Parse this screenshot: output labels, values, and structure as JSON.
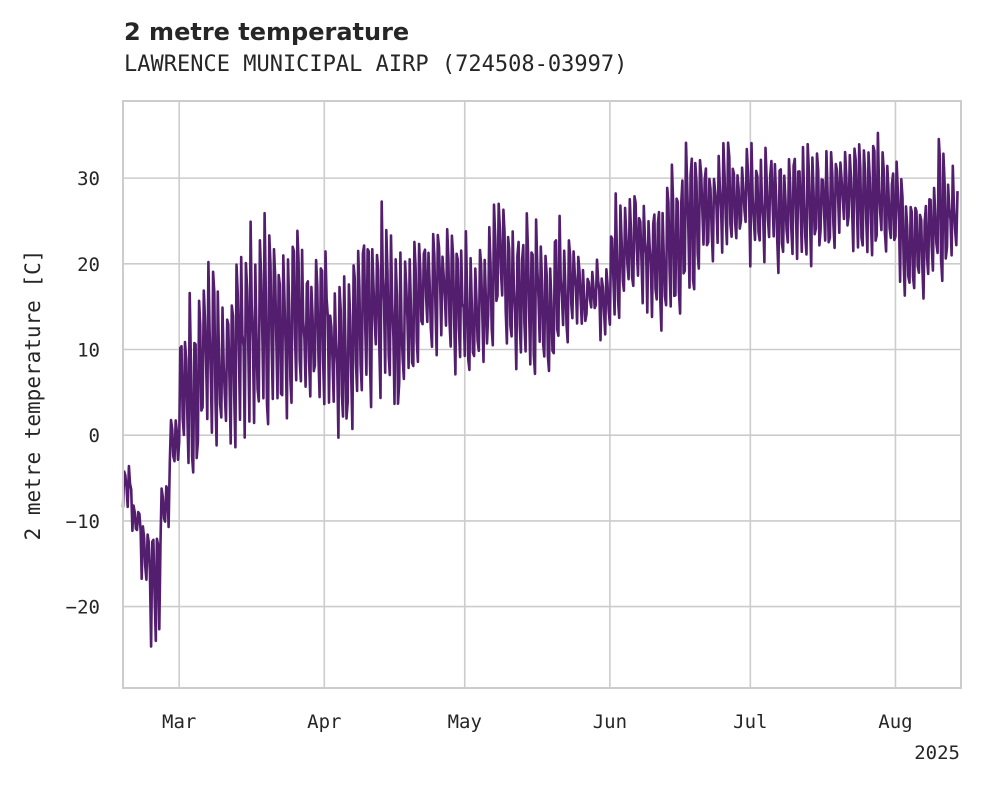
{
  "chart_data": {
    "type": "line",
    "title": "2 metre temperature",
    "subtitle": "LAWRENCE MUNICIPAL AIRP (724508-03997)",
    "ylabel": "2 metre temperature [C]",
    "xlabel": "",
    "x_tick_labels": [
      "Mar",
      "Apr",
      "May",
      "Jun",
      "Jul",
      "Aug"
    ],
    "x_tick_dates": [
      "2025-03-01",
      "2025-04-01",
      "2025-05-01",
      "2025-06-01",
      "2025-07-01",
      "2025-08-01"
    ],
    "x_year_label": "2025",
    "y_ticks": [
      -20,
      -10,
      0,
      10,
      20,
      30
    ],
    "y_tick_labels": [
      "−20",
      "−10",
      "0",
      "10",
      "20",
      "30"
    ],
    "xlim": [
      "2025-02-17",
      "2025-08-15"
    ],
    "ylim": [
      -29.5,
      39
    ],
    "grid": true,
    "line_color": "#541e6e",
    "series": [
      {
        "x": [
          "2025-02-17",
          "2025-02-19",
          "2025-02-21",
          "2025-02-23",
          "2025-02-25",
          "2025-02-27",
          "2025-03-01",
          "2025-03-03",
          "2025-03-05",
          "2025-03-07",
          "2025-03-09",
          "2025-03-11",
          "2025-03-13",
          "2025-03-15",
          "2025-03-17",
          "2025-03-19",
          "2025-03-21",
          "2025-03-23",
          "2025-03-25",
          "2025-03-27",
          "2025-03-29",
          "2025-03-31",
          "2025-04-02",
          "2025-04-04",
          "2025-04-06",
          "2025-04-08",
          "2025-04-10",
          "2025-04-12",
          "2025-04-14",
          "2025-04-16",
          "2025-04-18",
          "2025-04-20",
          "2025-04-22",
          "2025-04-24",
          "2025-04-26",
          "2025-04-28",
          "2025-04-30",
          "2025-05-02",
          "2025-05-04",
          "2025-05-06",
          "2025-05-08",
          "2025-05-10",
          "2025-05-12",
          "2025-05-14",
          "2025-05-16",
          "2025-05-18",
          "2025-05-20",
          "2025-05-22",
          "2025-05-24",
          "2025-05-26",
          "2025-05-28",
          "2025-05-30",
          "2025-06-01",
          "2025-06-03",
          "2025-06-05",
          "2025-06-07",
          "2025-06-09",
          "2025-06-11",
          "2025-06-13",
          "2025-06-15",
          "2025-06-17",
          "2025-06-19",
          "2025-06-21",
          "2025-06-23",
          "2025-06-25",
          "2025-06-27",
          "2025-06-29",
          "2025-07-01",
          "2025-07-03",
          "2025-07-05",
          "2025-07-07",
          "2025-07-09",
          "2025-07-11",
          "2025-07-13",
          "2025-07-15",
          "2025-07-17",
          "2025-07-19",
          "2025-07-21",
          "2025-07-23",
          "2025-07-25",
          "2025-07-27",
          "2025-07-29",
          "2025-07-31",
          "2025-08-02",
          "2025-08-04",
          "2025-08-06",
          "2025-08-08",
          "2025-08-10",
          "2025-08-12",
          "2025-08-14"
        ],
        "low": [
          -10,
          -12,
          -17,
          -26,
          -13,
          -4,
          -5,
          -6,
          -3,
          -4,
          -5,
          -3,
          -3,
          -1,
          -2,
          -1,
          -1,
          -1,
          3,
          4,
          4,
          3,
          3,
          -2,
          -4,
          1,
          3,
          3,
          3,
          -1,
          5,
          7,
          10,
          9,
          11,
          5,
          4,
          4,
          7,
          10,
          11,
          5,
          7,
          6,
          7,
          6,
          9,
          10,
          13,
          12,
          13,
          10,
          10,
          13,
          13,
          14,
          13,
          11,
          10,
          11,
          12,
          17,
          20,
          20,
          21,
          21,
          22,
          19,
          19,
          20,
          18,
          20,
          19,
          19,
          20,
          19,
          21,
          22,
          21,
          21,
          20,
          20,
          20,
          15,
          14,
          15,
          15,
          18,
          20,
          21
        ],
        "high": [
          -3,
          -8,
          -10,
          -9,
          -5,
          2,
          14,
          17,
          20,
          22,
          17,
          16,
          23,
          26,
          24,
          27,
          26,
          25,
          25,
          26,
          22,
          22,
          18,
          21,
          24,
          27,
          26,
          28,
          24,
          23,
          21,
          23,
          25,
          27,
          26,
          27,
          25,
          21,
          24,
          27,
          28,
          27,
          25,
          26,
          26,
          23,
          26,
          24,
          23,
          21,
          21,
          21,
          29,
          29,
          30,
          29,
          30,
          29,
          32,
          33,
          35,
          34,
          34,
          33,
          35,
          35,
          34,
          35,
          34,
          35,
          34,
          35,
          35,
          34,
          33,
          35,
          34,
          34,
          35,
          35,
          36,
          34,
          33,
          30,
          30,
          29,
          30,
          36,
          32,
          31
        ],
        "values": [
          -6,
          -10,
          -15,
          -18,
          -8,
          -1,
          7,
          5,
          10,
          12,
          8,
          9,
          11,
          13,
          12,
          14,
          12,
          13,
          14,
          12,
          13,
          14,
          9,
          8,
          13,
          13,
          14,
          16,
          13,
          12,
          14,
          15,
          17,
          18,
          17,
          16,
          15,
          13,
          16,
          18,
          20,
          17,
          17,
          16,
          17,
          15,
          18,
          17,
          18,
          16,
          17,
          16,
          19,
          21,
          22,
          22,
          21,
          20,
          22,
          23,
          27,
          28,
          27,
          27,
          28,
          27,
          28,
          27,
          26,
          27,
          26,
          27,
          27,
          26,
          27,
          26,
          28,
          28,
          27,
          28,
          28,
          27,
          26,
          24,
          22,
          22,
          23,
          26,
          26,
          26
        ]
      }
    ]
  }
}
